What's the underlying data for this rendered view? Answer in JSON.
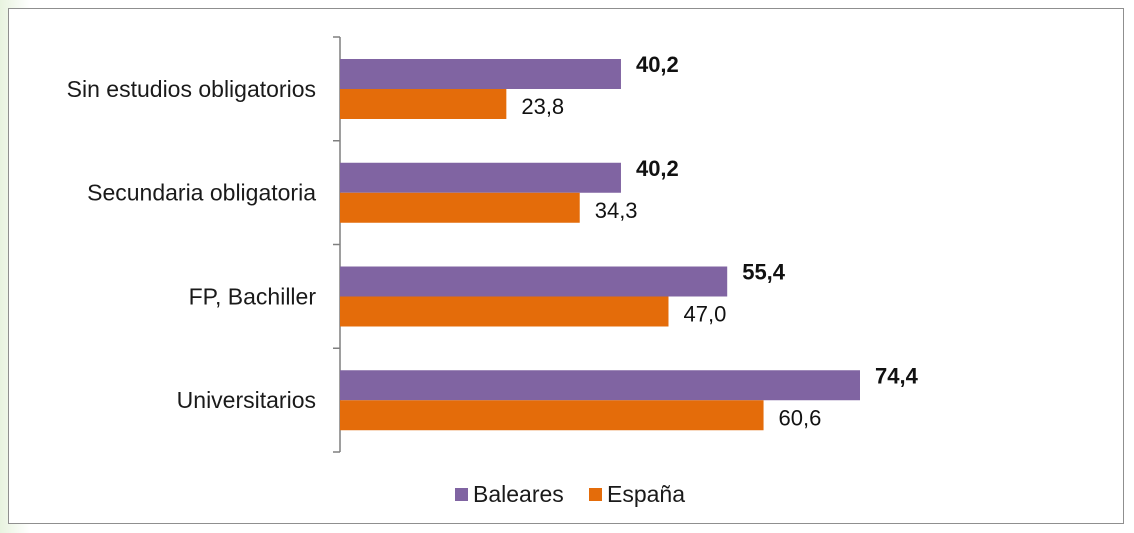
{
  "chart_data": {
    "type": "bar",
    "orientation": "horizontal",
    "categories": [
      "Sin estudios obligatorios",
      "Secundaria obligatoria",
      "FP, Bachiller",
      "Universitarios"
    ],
    "series": [
      {
        "name": "Baleares",
        "values": [
          40.2,
          40.2,
          55.4,
          74.4
        ],
        "labels": [
          "40,2",
          "40,2",
          "55,4",
          "74,4"
        ],
        "color": "#8064a2",
        "label_bold": true
      },
      {
        "name": "España",
        "values": [
          23.8,
          34.3,
          47.0,
          60.6
        ],
        "labels": [
          "23,8",
          "34,3",
          "47,0",
          "60,6"
        ],
        "color": "#e46c0a",
        "label_bold": false
      }
    ],
    "xlim": [
      0,
      80
    ],
    "grid": false,
    "legend": "bottom"
  }
}
